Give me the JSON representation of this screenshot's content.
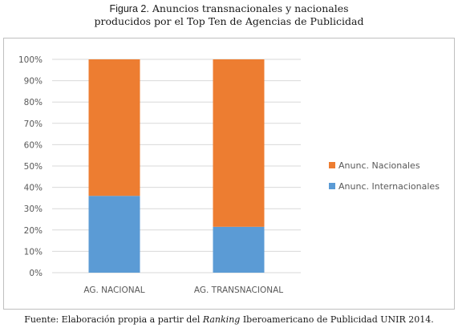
{
  "figure": {
    "label": "Figura 2.",
    "title_line1": "Anuncios transnacionales y nacionales",
    "title_line2": "producidos por el Top Ten de Agencias de Publicidad"
  },
  "source": {
    "prefix": "Fuente: Elaboración propia a partir del ",
    "italic": "Ranking",
    "suffix": " Iberoamericano de Publicidad UNIR 2014."
  },
  "chart_data": {
    "type": "bar",
    "stacked": true,
    "percent": true,
    "categories": [
      "AG. NACIONAL",
      "AG. TRANSNACIONAL"
    ],
    "series": [
      {
        "name": "Anunc. Internacionales",
        "values": [
          36,
          21.5
        ],
        "color": "#5b9bd5"
      },
      {
        "name": "Anunc. Nacionales",
        "values": [
          64,
          78.5
        ],
        "color": "#ed7d31"
      }
    ],
    "yticks": [
      "0%",
      "10%",
      "20%",
      "30%",
      "40%",
      "50%",
      "60%",
      "70%",
      "80%",
      "90%",
      "100%"
    ],
    "ylim": [
      0,
      100
    ],
    "grid": true,
    "legend_position": "right"
  }
}
